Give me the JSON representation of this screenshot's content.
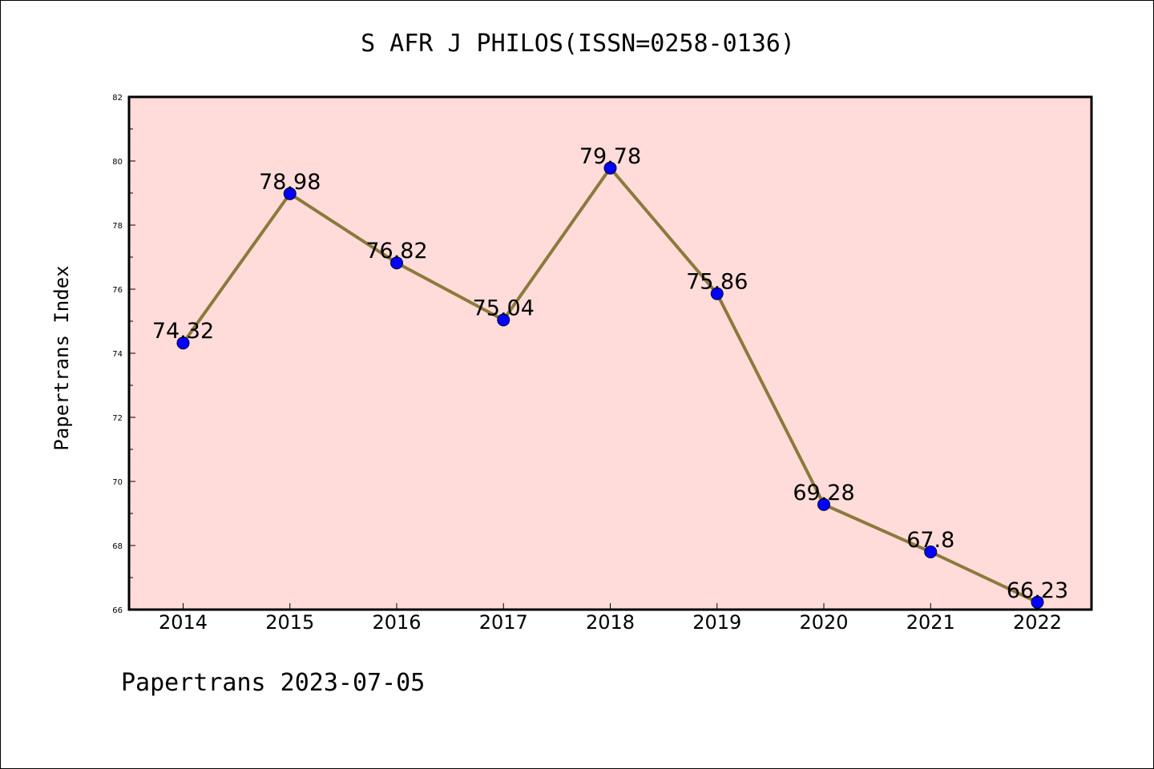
{
  "chart_data": {
    "type": "line",
    "title": "S AFR J PHILOS(ISSN=0258-0136)",
    "ylabel": "Papertrans Index",
    "xlabel": "",
    "x": [
      "2014",
      "2015",
      "2016",
      "2017",
      "2018",
      "2019",
      "2020",
      "2021",
      "2022"
    ],
    "series": [
      {
        "values": [
          74.32,
          78.98,
          76.82,
          75.04,
          79.78,
          75.86,
          69.28,
          67.8,
          66.23
        ],
        "labels": [
          "74.32",
          "78.98",
          "76.82",
          "75.04",
          "79.78",
          "75.86",
          "69.28",
          "67.8",
          "66.23"
        ]
      }
    ],
    "ylim": [
      66,
      82
    ],
    "yticks": [
      "66",
      "68",
      "70",
      "72",
      "74",
      "76",
      "78",
      "80",
      "82"
    ],
    "grid": false,
    "legend": "none",
    "colors": {
      "plot_background": "#ffdcd9",
      "line": "#8b7a3c",
      "marker": "#0000ff"
    }
  },
  "footer": "Papertrans 2023-07-05"
}
